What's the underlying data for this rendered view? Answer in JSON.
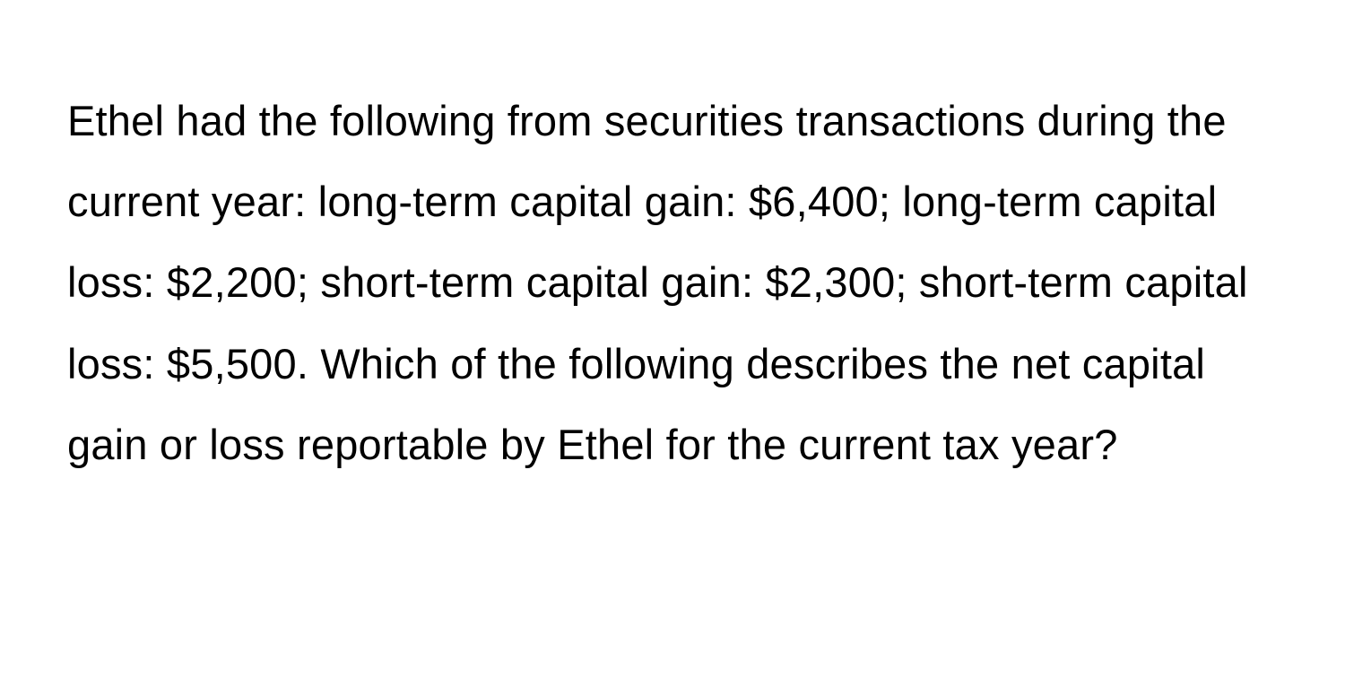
{
  "question": {
    "text": "Ethel had the following from securities transactions during the current year: long-term capital gain: $6,400; long-term capital loss: $2,200; short-term capital gain: $2,300; short-term capital loss: $5,500. Which of the following describes the net capital gain or loss reportable by Ethel for the current tax year?",
    "text_color": "#000000",
    "background_color": "#ffffff",
    "font_size": 47,
    "line_height": 1.92
  }
}
